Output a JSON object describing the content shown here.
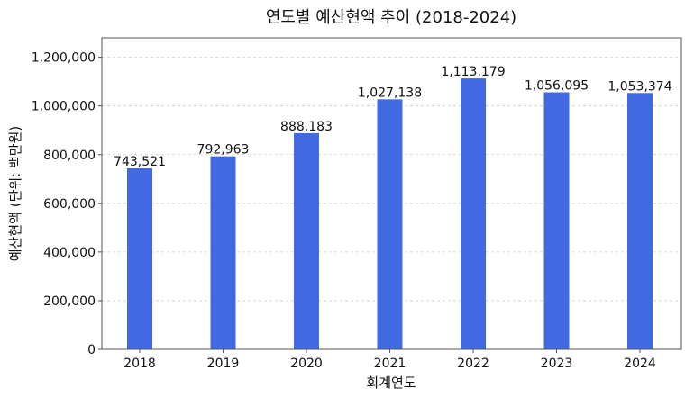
{
  "chart_data": {
    "type": "bar",
    "title": "연도별 예산현액 추이 (2018-2024)",
    "xlabel": "회계연도",
    "ylabel": "예산현액 (단위: 백만원)",
    "categories": [
      "2018",
      "2019",
      "2020",
      "2021",
      "2022",
      "2023",
      "2024"
    ],
    "values": [
      743521,
      792963,
      888183,
      1027138,
      1113179,
      1056095,
      1053374
    ],
    "data_labels": [
      "743,521",
      "792,963",
      "888,183",
      "1,027,138",
      "1,113,179",
      "1,056,095",
      "1,053,374"
    ],
    "yticks": [
      0,
      200000,
      400000,
      600000,
      800000,
      1000000,
      1200000
    ],
    "ytick_labels": [
      "0",
      "200,000",
      "400,000",
      "600,000",
      "800,000",
      "1,000,000",
      "1,200,000"
    ],
    "ylim": [
      0,
      1280000
    ],
    "grid": "horizontal dashed",
    "bar_color": "#4169e1"
  }
}
